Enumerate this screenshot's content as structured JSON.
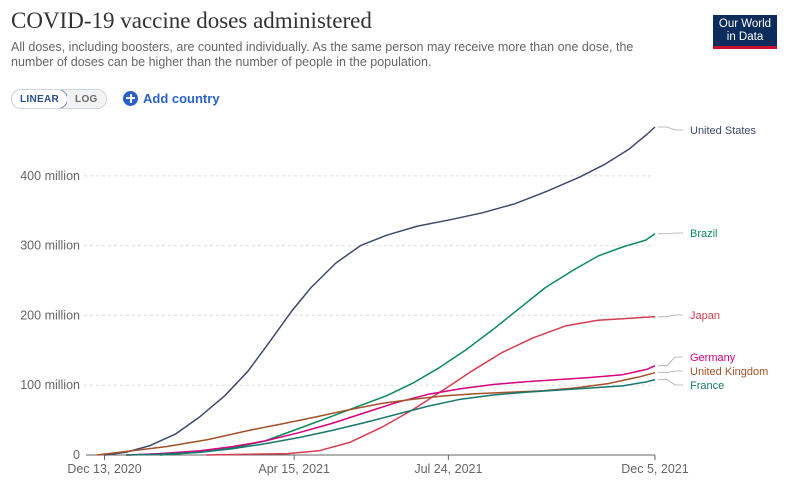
{
  "header": {
    "title": "COVID-19 vaccine doses administered",
    "subtitle": "All doses, including boosters, are counted individually. As the same person may receive more than one dose, the number of doses can be higher than the number of people in the population.",
    "logo_line1": "Our World",
    "logo_line2": "in Data"
  },
  "controls": {
    "linear_label": "LINEAR",
    "log_label": "LOG",
    "add_country_label": "Add country",
    "scale_selected": "LINEAR"
  },
  "colors": {
    "United States": "#3d4a6b",
    "Brazil": "#0b8a5a",
    "Japan": "#d73c50",
    "Germany": "#d6007f",
    "United Kingdom": "#a2512a",
    "France": "#17776e",
    "grid": "#dddddd",
    "axis": "#666666"
  },
  "chart_data": {
    "type": "line",
    "title": "COVID-19 vaccine doses administered",
    "xlabel": "",
    "ylabel": "",
    "x_range": [
      "2020-12-01",
      "2021-12-05"
    ],
    "ylim": [
      0,
      470000000
    ],
    "y_ticks": [
      {
        "value": 0,
        "label": "0"
      },
      {
        "value": 100000000,
        "label": "100 million"
      },
      {
        "value": 200000000,
        "label": "200 million"
      },
      {
        "value": 300000000,
        "label": "300 million"
      },
      {
        "value": 400000000,
        "label": "400 million"
      }
    ],
    "x_ticks": [
      {
        "value": "2020-12-13",
        "label": "Dec 13, 2020"
      },
      {
        "value": "2021-04-15",
        "label": "Apr 15, 2021"
      },
      {
        "value": "2021-07-24",
        "label": "Jul 24, 2021"
      },
      {
        "value": "2021-12-05",
        "label": "Dec 5, 2021"
      }
    ],
    "grid": true,
    "legend": "right end labels",
    "series": [
      {
        "name": "United States",
        "points": [
          [
            "2020-12-13",
            0
          ],
          [
            "2020-12-27",
            4000000
          ],
          [
            "2021-01-11",
            13000000
          ],
          [
            "2021-01-28",
            30000000
          ],
          [
            "2021-02-13",
            55000000
          ],
          [
            "2021-03-01",
            85000000
          ],
          [
            "2021-03-16",
            120000000
          ],
          [
            "2021-03-31",
            165000000
          ],
          [
            "2021-04-13",
            205000000
          ],
          [
            "2021-04-26",
            240000000
          ],
          [
            "2021-05-12",
            275000000
          ],
          [
            "2021-05-28",
            300000000
          ],
          [
            "2021-06-14",
            315000000
          ],
          [
            "2021-07-04",
            328000000
          ],
          [
            "2021-07-25",
            337000000
          ],
          [
            "2021-08-15",
            347000000
          ],
          [
            "2021-09-05",
            360000000
          ],
          [
            "2021-09-26",
            378000000
          ],
          [
            "2021-10-17",
            398000000
          ],
          [
            "2021-11-02",
            416000000
          ],
          [
            "2021-11-18",
            438000000
          ],
          [
            "2021-11-30",
            460000000
          ],
          [
            "2021-12-05",
            470000000
          ]
        ]
      },
      {
        "name": "Brazil",
        "points": [
          [
            "2021-01-18",
            0
          ],
          [
            "2021-02-13",
            4000000
          ],
          [
            "2021-03-06",
            10000000
          ],
          [
            "2021-03-27",
            20000000
          ],
          [
            "2021-04-18",
            38000000
          ],
          [
            "2021-05-09",
            55000000
          ],
          [
            "2021-05-27",
            70000000
          ],
          [
            "2021-06-14",
            85000000
          ],
          [
            "2021-07-01",
            103000000
          ],
          [
            "2021-07-18",
            125000000
          ],
          [
            "2021-08-04",
            150000000
          ],
          [
            "2021-08-22",
            180000000
          ],
          [
            "2021-09-08",
            210000000
          ],
          [
            "2021-09-25",
            240000000
          ],
          [
            "2021-10-13",
            265000000
          ],
          [
            "2021-10-29",
            285000000
          ],
          [
            "2021-11-14",
            298000000
          ],
          [
            "2021-11-29",
            308000000
          ],
          [
            "2021-12-05",
            317000000
          ]
        ]
      },
      {
        "name": "Japan",
        "points": [
          [
            "2021-02-17",
            0
          ],
          [
            "2021-04-11",
            2000000
          ],
          [
            "2021-05-01",
            6000000
          ],
          [
            "2021-05-21",
            18000000
          ],
          [
            "2021-06-11",
            40000000
          ],
          [
            "2021-07-01",
            65000000
          ],
          [
            "2021-07-20",
            92000000
          ],
          [
            "2021-08-08",
            120000000
          ],
          [
            "2021-08-28",
            147000000
          ],
          [
            "2021-09-17",
            168000000
          ],
          [
            "2021-10-08",
            185000000
          ],
          [
            "2021-10-29",
            193000000
          ],
          [
            "2021-11-19",
            196000000
          ],
          [
            "2021-12-05",
            198000000
          ]
        ]
      },
      {
        "name": "Germany",
        "points": [
          [
            "2020-12-27",
            0
          ],
          [
            "2021-01-18",
            2000000
          ],
          [
            "2021-02-13",
            6000000
          ],
          [
            "2021-03-06",
            12000000
          ],
          [
            "2021-03-27",
            20000000
          ],
          [
            "2021-04-18",
            32000000
          ],
          [
            "2021-05-09",
            45000000
          ],
          [
            "2021-05-30",
            60000000
          ],
          [
            "2021-06-20",
            75000000
          ],
          [
            "2021-07-11",
            87000000
          ],
          [
            "2021-08-01",
            95000000
          ],
          [
            "2021-08-22",
            101000000
          ],
          [
            "2021-09-12",
            105000000
          ],
          [
            "2021-10-03",
            108000000
          ],
          [
            "2021-10-24",
            111000000
          ],
          [
            "2021-11-14",
            115000000
          ],
          [
            "2021-11-30",
            123000000
          ],
          [
            "2021-12-05",
            128000000
          ]
        ]
      },
      {
        "name": "United Kingdom",
        "points": [
          [
            "2020-12-08",
            0
          ],
          [
            "2020-12-27",
            5000000
          ],
          [
            "2021-01-22",
            12000000
          ],
          [
            "2021-02-18",
            22000000
          ],
          [
            "2021-03-16",
            35000000
          ],
          [
            "2021-04-08",
            45000000
          ],
          [
            "2021-04-30",
            55000000
          ],
          [
            "2021-05-21",
            65000000
          ],
          [
            "2021-06-11",
            74000000
          ],
          [
            "2021-07-01",
            80000000
          ],
          [
            "2021-07-22",
            85000000
          ],
          [
            "2021-08-12",
            88000000
          ],
          [
            "2021-09-02",
            90000000
          ],
          [
            "2021-09-23",
            92000000
          ],
          [
            "2021-10-14",
            96000000
          ],
          [
            "2021-11-04",
            102000000
          ],
          [
            "2021-11-25",
            112000000
          ],
          [
            "2021-12-05",
            118000000
          ]
        ]
      },
      {
        "name": "France",
        "points": [
          [
            "2020-12-27",
            0
          ],
          [
            "2021-01-18",
            1000000
          ],
          [
            "2021-02-13",
            4000000
          ],
          [
            "2021-03-06",
            9000000
          ],
          [
            "2021-03-27",
            16000000
          ],
          [
            "2021-04-18",
            25000000
          ],
          [
            "2021-05-09",
            35000000
          ],
          [
            "2021-05-30",
            46000000
          ],
          [
            "2021-06-20",
            58000000
          ],
          [
            "2021-07-11",
            70000000
          ],
          [
            "2021-08-01",
            80000000
          ],
          [
            "2021-08-22",
            86000000
          ],
          [
            "2021-09-12",
            90000000
          ],
          [
            "2021-10-03",
            93000000
          ],
          [
            "2021-10-24",
            96000000
          ],
          [
            "2021-11-14",
            99000000
          ],
          [
            "2021-11-30",
            105000000
          ],
          [
            "2021-12-05",
            108000000
          ]
        ]
      }
    ]
  }
}
